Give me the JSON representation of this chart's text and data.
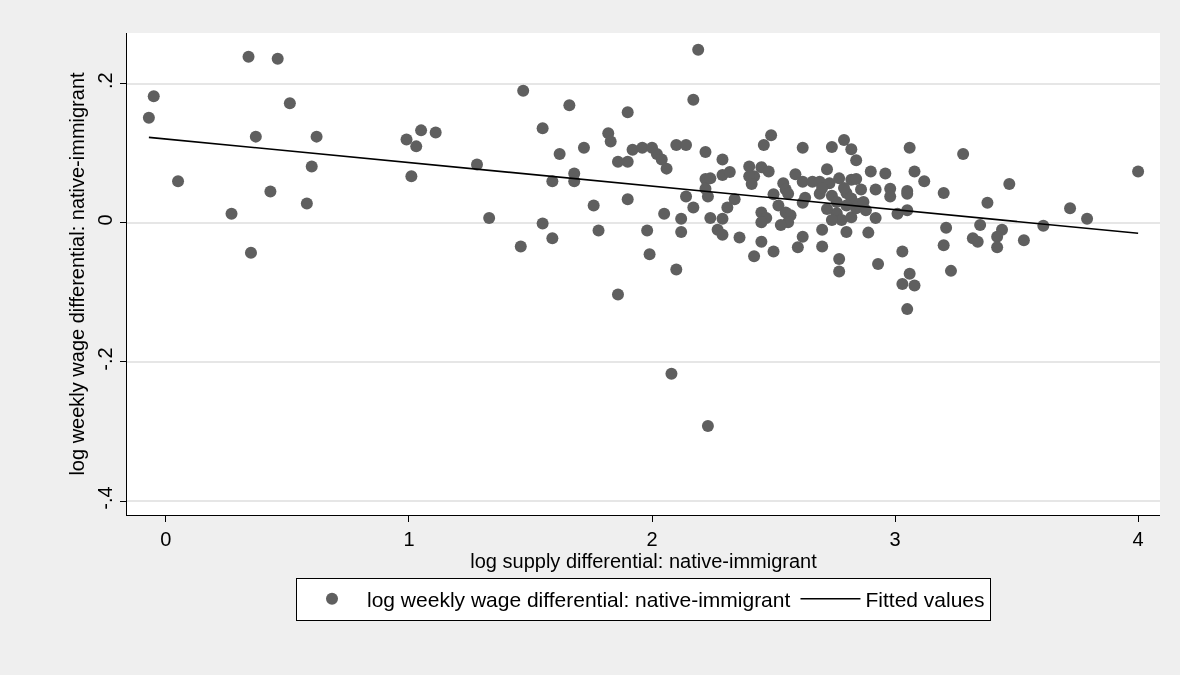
{
  "chart_data": {
    "type": "scatter",
    "xlabel": "log supply differential: native-immigrant",
    "ylabel": "log weekly wage differential: native-immigrant",
    "xlim": [
      -0.16,
      4.09
    ],
    "ylim": [
      -0.42,
      0.273
    ],
    "xticks": [
      0,
      1,
      2,
      3,
      4
    ],
    "yticks": [
      {
        "value": -0.4,
        "label": "-.4"
      },
      {
        "value": -0.2,
        "label": "-.2"
      },
      0,
      {
        "value": 0.2,
        "label": ".2"
      }
    ],
    "grid": "y",
    "legend": "bottom",
    "marker": "circle",
    "series": [
      {
        "name": "log weekly wage differential: native-immigrant",
        "color": "#5f5f5f",
        "x": [
          -0.05,
          -0.07,
          0.05,
          0.27,
          0.34,
          0.35,
          0.37,
          0.43,
          0.46,
          0.51,
          0.58,
          0.6,
          0.62,
          0.99,
          1.03,
          1.05,
          1.11,
          1.01,
          1.47,
          1.66,
          1.9,
          1.55,
          1.82,
          1.83,
          1.72,
          1.62,
          1.86,
          1.9,
          1.28,
          1.68,
          1.59,
          1.68,
          1.9,
          1.76,
          1.33,
          1.55,
          1.78,
          1.98,
          1.59,
          1.46,
          1.99,
          1.86,
          2.19,
          2.17,
          2.49,
          2.46,
          2.62,
          2.74,
          2.79,
          2.82,
          2.1,
          2.14,
          1.92,
          1.96,
          2.0,
          2.02,
          2.04,
          2.06,
          2.22,
          2.29,
          2.29,
          2.32,
          2.22,
          2.24,
          2.22,
          2.23,
          2.4,
          2.42,
          2.45,
          2.48,
          2.4,
          2.41,
          2.59,
          2.72,
          2.54,
          2.55,
          2.56,
          2.5,
          2.62,
          2.66,
          2.69,
          2.73,
          2.77,
          2.82,
          2.62,
          2.63,
          2.69,
          2.74,
          2.8,
          2.82,
          2.14,
          2.17,
          2.34,
          2.31,
          2.05,
          2.12,
          2.24,
          2.29,
          2.45,
          2.47,
          2.45,
          2.52,
          2.55,
          2.57,
          2.56,
          2.53,
          2.76,
          2.78,
          2.74,
          2.82,
          2.84,
          2.8,
          2.12,
          2.27,
          2.29,
          2.36,
          2.45,
          2.5,
          2.42,
          2.62,
          2.6,
          2.7,
          2.7,
          2.77,
          2.77,
          2.1,
          2.08,
          2.23,
          3.28,
          3.06,
          3.47,
          3.38,
          3.2,
          3.72,
          3.79,
          3.61,
          3.35,
          3.21,
          3.44,
          3.42,
          3.32,
          3.34,
          3.53,
          3.42,
          3.2,
          3.23,
          3.03,
          3.06,
          3.03,
          3.08,
          3.05,
          2.93,
          2.89,
          3.01,
          3.08,
          3.12,
          3.05,
          3.05,
          2.96,
          2.9,
          2.84,
          2.84,
          2.92,
          2.98,
          2.98,
          3.05,
          2.92,
          4.0,
          2.72,
          2.76,
          2.8,
          2.85,
          2.88,
          2.87,
          2.7,
          2.79,
          2.86
        ],
        "values": [
          0.182,
          0.151,
          0.06,
          0.013,
          0.239,
          -0.043,
          0.124,
          0.045,
          0.236,
          0.172,
          0.028,
          0.081,
          0.124,
          0.12,
          0.11,
          0.133,
          0.13,
          0.067,
          0.19,
          0.169,
          0.159,
          0.136,
          0.129,
          0.117,
          0.108,
          0.099,
          0.088,
          0.088,
          0.084,
          0.071,
          0.06,
          0.06,
          0.034,
          0.025,
          0.007,
          -0.001,
          -0.011,
          -0.011,
          -0.022,
          -0.034,
          -0.045,
          -0.103,
          0.249,
          0.177,
          0.126,
          0.112,
          0.108,
          0.109,
          0.119,
          0.106,
          0.112,
          0.112,
          0.105,
          0.108,
          0.108,
          0.099,
          0.091,
          0.078,
          0.102,
          0.091,
          0.069,
          0.073,
          0.063,
          0.064,
          0.049,
          0.038,
          0.081,
          0.067,
          0.08,
          0.074,
          0.067,
          0.056,
          0.07,
          0.077,
          0.057,
          0.048,
          0.042,
          0.041,
          0.059,
          0.059,
          0.059,
          0.057,
          0.064,
          0.062,
          0.029,
          0.036,
          0.042,
          0.039,
          0.043,
          0.035,
          0.038,
          0.022,
          0.034,
          0.022,
          0.013,
          0.006,
          0.007,
          0.006,
          0.015,
          0.007,
          0.001,
          0.025,
          0.015,
          0.011,
          0.001,
          -0.003,
          0.014,
          0.004,
          0.004,
          0.008,
          0.021,
          -0.013,
          -0.013,
          -0.01,
          -0.017,
          -0.021,
          -0.027,
          -0.041,
          -0.048,
          -0.02,
          -0.035,
          -0.01,
          -0.034,
          -0.052,
          -0.07,
          -0.067,
          -0.217,
          -0.292,
          0.099,
          0.108,
          0.056,
          0.029,
          0.043,
          0.021,
          0.006,
          -0.004,
          -0.003,
          -0.007,
          -0.01,
          -0.02,
          -0.022,
          -0.027,
          -0.025,
          -0.035,
          -0.032,
          -0.069,
          -0.041,
          -0.073,
          -0.088,
          -0.09,
          -0.124,
          -0.059,
          -0.014,
          0.013,
          0.074,
          0.06,
          0.046,
          0.042,
          0.071,
          0.074,
          0.09,
          0.063,
          0.048,
          0.049,
          0.038,
          0.018,
          0.007,
          0.074,
          0.02,
          0.03,
          0.025,
          0.027,
          0.018,
          0.03,
          0.05,
          0.05,
          0.048
        ]
      },
      {
        "name": "Fitted values",
        "type": "line",
        "color": "#000000",
        "marker": "none",
        "x": [
          -0.07,
          4.0
        ],
        "values": [
          0.123,
          -0.015
        ]
      }
    ]
  }
}
